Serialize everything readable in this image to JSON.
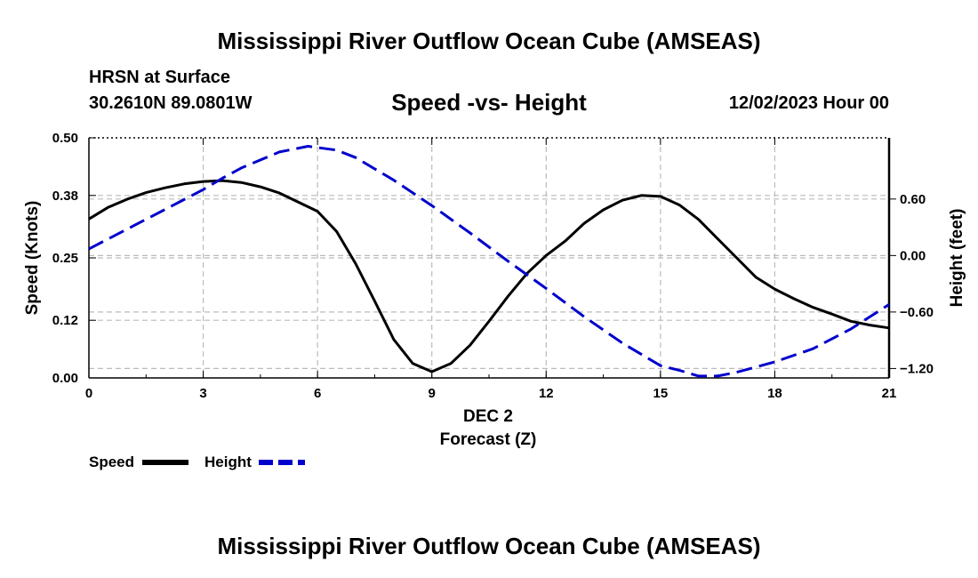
{
  "header": {
    "title": "Mississippi River Outflow Ocean Cube (AMSEAS)",
    "station": "HRSN at Surface",
    "coordinates": "30.2610N  89.0801W",
    "subtitle": "Speed -vs- Height",
    "datetime": "12/02/2023 Hour 00"
  },
  "footer": {
    "title": "Mississippi River Outflow Ocean Cube (AMSEAS)"
  },
  "legend": {
    "speed_label": "Speed",
    "height_label": "Height"
  },
  "colors": {
    "speed": "#000000",
    "height": "#0000cc",
    "grid": "#bbbbbb"
  },
  "chart_data": {
    "type": "line",
    "title": "Speed -vs- Height",
    "xlabel": "Forecast (Z)",
    "xlabel_date": "DEC 2",
    "ylabel": "Speed (Knots)",
    "y2label": "Height (feet)",
    "xlim": [
      0,
      21
    ],
    "ylim": [
      0,
      0.5
    ],
    "y2lim": [
      -1.3,
      1.25
    ],
    "xticks": [
      0,
      3,
      6,
      9,
      12,
      15,
      18,
      21
    ],
    "yticks": [
      0.0,
      0.12,
      0.25,
      0.38,
      0.5
    ],
    "ytick_labels": [
      "0.00",
      "0.12",
      "0.25",
      "0.38",
      "0.50"
    ],
    "y2ticks": [
      -1.2,
      -0.6,
      0.0,
      0.6
    ],
    "y2tick_labels": [
      "−1.20",
      "−0.60",
      "0.00",
      "0.60"
    ],
    "grid": true,
    "series": [
      {
        "name": "Speed",
        "axis": "left",
        "style": "solid",
        "x": [
          0,
          0.5,
          1,
          1.5,
          2,
          2.5,
          3,
          3.5,
          4,
          4.5,
          5,
          5.5,
          6,
          6.5,
          7,
          7.5,
          8,
          8.5,
          9,
          9.5,
          10,
          10.5,
          11,
          11.5,
          12,
          12.5,
          13,
          13.5,
          14,
          14.5,
          15,
          15.5,
          16,
          16.5,
          17,
          17.5,
          18,
          18.5,
          19,
          19.5,
          20,
          20.5,
          21
        ],
        "values": [
          0.331,
          0.355,
          0.372,
          0.386,
          0.396,
          0.404,
          0.409,
          0.411,
          0.407,
          0.398,
          0.385,
          0.366,
          0.347,
          0.305,
          0.238,
          0.16,
          0.08,
          0.03,
          0.013,
          0.03,
          0.068,
          0.118,
          0.17,
          0.218,
          0.255,
          0.285,
          0.322,
          0.35,
          0.37,
          0.38,
          0.378,
          0.36,
          0.33,
          0.29,
          0.25,
          0.21,
          0.185,
          0.165,
          0.147,
          0.133,
          0.118,
          0.11,
          0.104
        ]
      },
      {
        "name": "Height",
        "axis": "right",
        "style": "dashed",
        "x": [
          0,
          1,
          2,
          3,
          3.5,
          4,
          5,
          5.75,
          6.5,
          7,
          8,
          9,
          10,
          11,
          12,
          13,
          14,
          15,
          15.5,
          16,
          16.5,
          17,
          18,
          19,
          20,
          21
        ],
        "values": [
          0.07,
          0.28,
          0.49,
          0.7,
          0.82,
          0.93,
          1.1,
          1.16,
          1.12,
          1.04,
          0.8,
          0.53,
          0.24,
          -0.06,
          -0.35,
          -0.65,
          -0.93,
          -1.17,
          -1.22,
          -1.28,
          -1.28,
          -1.24,
          -1.13,
          -0.99,
          -0.78,
          -0.52
        ]
      }
    ]
  }
}
